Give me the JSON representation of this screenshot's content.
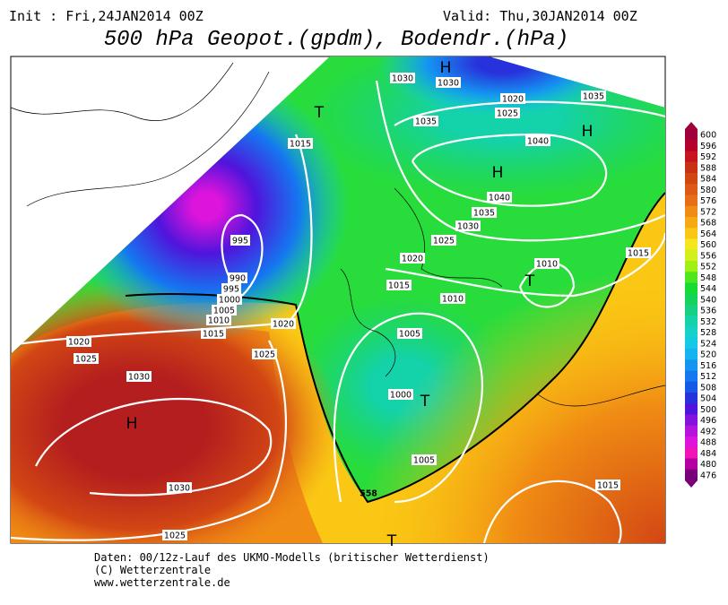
{
  "header": {
    "init": "Init : Fri,24JAN2014 00Z",
    "valid": "Valid: Thu,30JAN2014 00Z",
    "title": "500 hPa Geopot.(gpdm), Bodendr.(hPa)"
  },
  "map": {
    "isobar_labels": [
      "1030",
      "1030",
      "1020",
      "1035",
      "1025",
      "1035",
      "1040",
      "1015",
      "1040",
      "1035",
      "1030",
      "1025",
      "995",
      "1020",
      "1010",
      "1015",
      "990",
      "1015",
      "995",
      "1000",
      "1010",
      "1005",
      "1010",
      "1020",
      "1015",
      "1005",
      "1020",
      "1025",
      "1025",
      "1030",
      "1000",
      "1005",
      "1015",
      "1030",
      "1025",
      "558"
    ],
    "pressure_centers": [
      "H",
      "T",
      "H",
      "H",
      "T",
      "T",
      "H",
      "T"
    ]
  },
  "colorbar": {
    "levels": [
      600,
      596,
      592,
      588,
      584,
      580,
      576,
      572,
      568,
      564,
      560,
      556,
      552,
      548,
      544,
      540,
      536,
      532,
      528,
      524,
      520,
      516,
      512,
      508,
      504,
      500,
      496,
      492,
      488,
      484,
      480,
      476
    ],
    "colors": [
      "#a0003c",
      "#b4002d",
      "#c8141e",
      "#c83214",
      "#d24614",
      "#dc5a14",
      "#e66e14",
      "#f08c14",
      "#f5aa14",
      "#fac814",
      "#f5e61e",
      "#d2f01e",
      "#a0f014",
      "#50e61e",
      "#14dc32",
      "#14d25a",
      "#14d282",
      "#14d2aa",
      "#14d2c8",
      "#14c8e6",
      "#14b4f0",
      "#1496f0",
      "#1478f0",
      "#145ae6",
      "#2832dc",
      "#5014dc",
      "#8214dc",
      "#b414dc",
      "#dc14dc",
      "#f014b4",
      "#b400a0",
      "#780078"
    ]
  },
  "footer": {
    "lines": [
      "Daten: 00/12z-Lauf des UKMO-Modells (britischer Wetterdienst)",
      "(C) Wetterzentrale",
      "www.wetterzentrale.de"
    ]
  }
}
